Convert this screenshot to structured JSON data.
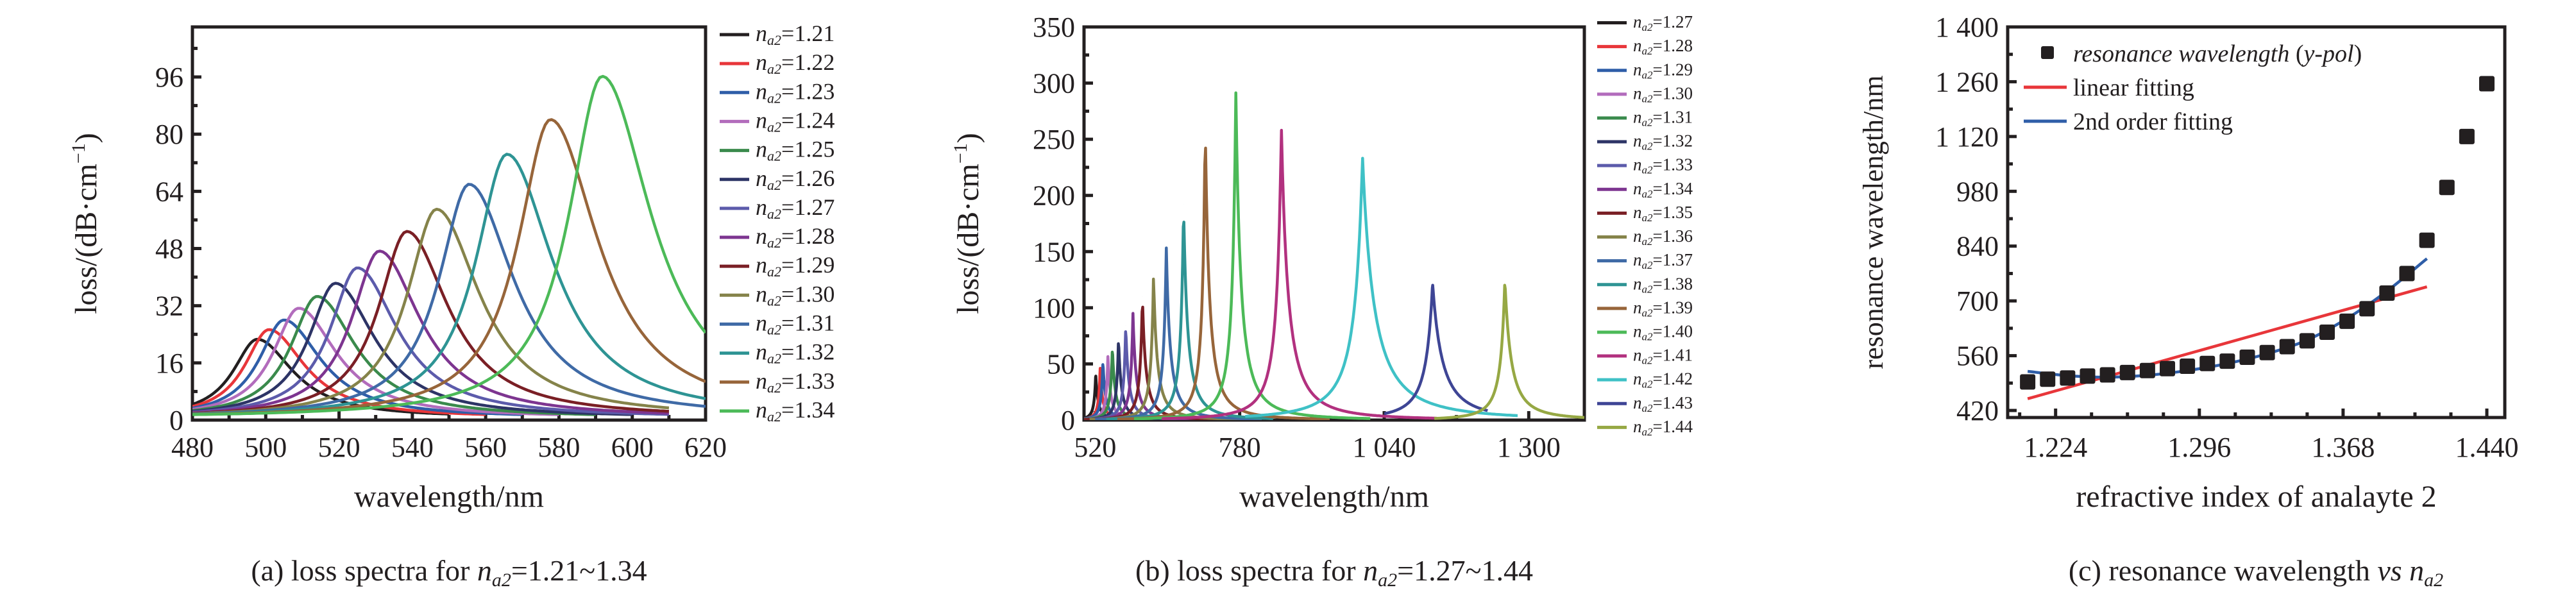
{
  "figure": {
    "background": "#ffffff",
    "axis_color": "#231f20"
  },
  "chart_data": [
    {
      "id": "a",
      "type": "line",
      "caption_prefix": "(a) loss spectra for ",
      "caption_var": "n",
      "caption_sub": "a2",
      "caption_suffix": "=1.21~1.34",
      "xlabel": "wavelength/nm",
      "ylabel": "loss/(dB·cm",
      "ylabel_sup": "−1",
      "ylabel_close": ")",
      "xlim": [
        480,
        620
      ],
      "ylim": [
        0,
        110
      ],
      "xticks": [
        480,
        500,
        520,
        540,
        560,
        580,
        600,
        620
      ],
      "xtick_labels": [
        "480",
        "500",
        "520",
        "540",
        "560",
        "580",
        "600",
        "620"
      ],
      "xminor": [
        490,
        510,
        530,
        550,
        570,
        590,
        610
      ],
      "yticks": [
        0,
        16,
        32,
        48,
        64,
        80,
        96
      ],
      "ytick_labels": [
        "0",
        "16",
        "32",
        "48",
        "64",
        "80",
        "96"
      ],
      "yminor": [
        8,
        24,
        40,
        56,
        72,
        88,
        104
      ],
      "grid": false,
      "legend_position": "right-outside",
      "legend_var": "n",
      "legend_sub": "a2",
      "series": [
        {
          "name": "1.21",
          "color": "#231f20",
          "peak_x": 497.7,
          "peak_y": 22.0,
          "x_end": 550,
          "width": 9.5
        },
        {
          "name": "1.22",
          "color": "#e8363a",
          "peak_x": 500.9,
          "peak_y": 24.7,
          "x_end": 560,
          "width": 9.5
        },
        {
          "name": "1.23",
          "color": "#2f5ea8",
          "peak_x": 505.0,
          "peak_y": 27.4,
          "x_end": 570,
          "width": 9.8
        },
        {
          "name": "1.24",
          "color": "#b26cbc",
          "peak_x": 509.0,
          "peak_y": 30.7,
          "x_end": 580,
          "width": 10.0
        },
        {
          "name": "1.25",
          "color": "#3a8a4c",
          "peak_x": 514.0,
          "peak_y": 34.0,
          "x_end": 590,
          "width": 10.2
        },
        {
          "name": "1.26",
          "color": "#2d3466",
          "peak_x": 519.0,
          "peak_y": 37.7,
          "x_end": 600,
          "width": 10.4
        },
        {
          "name": "1.27",
          "color": "#5c5bab",
          "peak_x": 525.0,
          "peak_y": 42.0,
          "x_end": 610,
          "width": 10.6
        },
        {
          "name": "1.28",
          "color": "#7d3590",
          "peak_x": 531.0,
          "peak_y": 46.7,
          "x_end": 610,
          "width": 10.8
        },
        {
          "name": "1.29",
          "color": "#7a1f25",
          "peak_x": 538.5,
          "peak_y": 52.2,
          "x_end": 610,
          "width": 11.0
        },
        {
          "name": "1.30",
          "color": "#85834a",
          "peak_x": 546.6,
          "peak_y": 58.4,
          "x_end": 610,
          "width": 11.4
        },
        {
          "name": "1.31",
          "color": "#3f6aa6",
          "peak_x": 555.5,
          "peak_y": 65.4,
          "x_end": 620,
          "width": 11.8
        },
        {
          "name": "1.32",
          "color": "#2e9494",
          "peak_x": 565.8,
          "peak_y": 73.8,
          "x_end": 620,
          "width": 12.2
        },
        {
          "name": "1.33",
          "color": "#97653a",
          "peak_x": 577.7,
          "peak_y": 83.5,
          "x_end": 620,
          "width": 12.6
        },
        {
          "name": "1.34",
          "color": "#4cba58",
          "peak_x": 591.8,
          "peak_y": 95.6,
          "x_end": 620,
          "width": 13.0
        }
      ]
    },
    {
      "id": "b",
      "type": "line",
      "caption_prefix": "(b) loss spectra for ",
      "caption_var": "n",
      "caption_sub": "a2",
      "caption_suffix": "=1.27~1.44",
      "xlabel": "wavelength/nm",
      "ylabel": "loss/(dB·cm",
      "ylabel_sup": "−1",
      "ylabel_close": ")",
      "xlim": [
        500,
        1400
      ],
      "ylim": [
        0,
        350
      ],
      "xticks": [
        520,
        780,
        1040,
        1300
      ],
      "xtick_labels": [
        "520",
        "780",
        "1 040",
        "1 300"
      ],
      "xminor": [
        650,
        910,
        1170
      ],
      "yticks": [
        0,
        50,
        100,
        150,
        200,
        250,
        300,
        350
      ],
      "ytick_labels": [
        "0",
        "50",
        "100",
        "150",
        "200",
        "250",
        "300",
        "350"
      ],
      "yminor": [
        25,
        75,
        125,
        175,
        225,
        275,
        325
      ],
      "grid": false,
      "legend_position": "right-outside",
      "legend_var": "n",
      "legend_sub": "a2",
      "series": [
        {
          "name": "1.27",
          "color": "#231f20",
          "peak_x": 521,
          "peak_y": 41.5,
          "x_start": 500,
          "x_end": 620,
          "width": 5
        },
        {
          "name": "1.28",
          "color": "#e8363a",
          "peak_x": 529,
          "peak_y": 47,
          "x_start": 500,
          "x_end": 640,
          "width": 5
        },
        {
          "name": "1.29",
          "color": "#2f5ea8",
          "peak_x": 534,
          "peak_y": 52,
          "x_start": 500,
          "x_end": 660,
          "width": 5.5
        },
        {
          "name": "1.30",
          "color": "#b26cbc",
          "peak_x": 543,
          "peak_y": 58,
          "x_start": 500,
          "x_end": 680,
          "width": 5.5
        },
        {
          "name": "1.31",
          "color": "#3a8a4c",
          "peak_x": 551,
          "peak_y": 65,
          "x_start": 500,
          "x_end": 700,
          "width": 6
        },
        {
          "name": "1.32",
          "color": "#2d3466",
          "peak_x": 562,
          "peak_y": 73,
          "x_start": 500,
          "x_end": 720,
          "width": 6
        },
        {
          "name": "1.33",
          "color": "#5c5bab",
          "peak_x": 575,
          "peak_y": 84,
          "x_start": 500,
          "x_end": 740,
          "width": 6.5
        },
        {
          "name": "1.34",
          "color": "#7d3590",
          "peak_x": 588,
          "peak_y": 95,
          "x_start": 500,
          "x_end": 760,
          "width": 7
        },
        {
          "name": "1.35",
          "color": "#7a1f25",
          "peak_x": 605,
          "peak_y": 110,
          "x_start": 500,
          "x_end": 780,
          "width": 7.5
        },
        {
          "name": "1.36",
          "color": "#85834a",
          "peak_x": 625,
          "peak_y": 129,
          "x_start": 510,
          "x_end": 800,
          "width": 8
        },
        {
          "name": "1.37",
          "color": "#3f6aa6",
          "peak_x": 648,
          "peak_y": 155,
          "x_start": 520,
          "x_end": 820,
          "width": 8.5
        },
        {
          "name": "1.38",
          "color": "#2e9494",
          "peak_x": 679,
          "peak_y": 192,
          "x_start": 540,
          "x_end": 840,
          "width": 9
        },
        {
          "name": "1.39",
          "color": "#97653a",
          "peak_x": 718,
          "peak_y": 266,
          "x_start": 560,
          "x_end": 942,
          "width": 9
        },
        {
          "name": "1.40",
          "color": "#4cba58",
          "peak_x": 773,
          "peak_y": 294,
          "x_start": 590,
          "x_end": 1015,
          "width": 11
        },
        {
          "name": "1.41",
          "color": "#b2317f",
          "peak_x": 855,
          "peak_y": 261,
          "x_start": 640,
          "x_end": 1135,
          "width": 15
        },
        {
          "name": "1.42",
          "color": "#3fc1c6",
          "peak_x": 1001,
          "peak_y": 234,
          "x_start": 790,
          "x_end": 1280,
          "width": 26
        },
        {
          "name": "1.43",
          "color": "#3e4595",
          "peak_x": 1127,
          "peak_y": 122,
          "x_start": 1040,
          "x_end": 1226,
          "width": 22
        },
        {
          "name": "1.44",
          "color": "#96a844",
          "peak_x": 1257,
          "peak_y": 125,
          "x_start": 1130,
          "x_end": 1400,
          "width": 14
        }
      ]
    },
    {
      "id": "c",
      "type": "scatter",
      "caption_prefix": "(c) resonance wavelength ",
      "caption_italic": "vs",
      "caption_var": "n",
      "caption_sub": "a2",
      "xlabel": "refractive index of analayte 2",
      "ylabel": "resonance wavelength/nm",
      "xlim": [
        1.2,
        1.449
      ],
      "ylim": [
        402,
        1400
      ],
      "xticks": [
        1.224,
        1.296,
        1.368,
        1.44
      ],
      "xtick_labels": [
        "1.224",
        "1.296",
        "1.368",
        "1.440"
      ],
      "xminor": [
        1.206,
        1.242,
        1.26,
        1.278,
        1.314,
        1.332,
        1.35,
        1.386,
        1.404,
        1.422
      ],
      "yticks": [
        420,
        560,
        700,
        840,
        980,
        1120,
        1260,
        1400
      ],
      "ytick_labels": [
        "420",
        "560",
        "700",
        "840",
        "980",
        "1 120",
        "1 260",
        "1 400"
      ],
      "yminor": [
        490,
        630,
        770,
        910,
        1050,
        1190,
        1330
      ],
      "grid": false,
      "legend_position": "top-left",
      "legend": [
        {
          "label_italic": "resonance wavelength",
          "label_plain": " (",
          "label_italic2": "y-pol",
          "label_close": ")",
          "marker": "square",
          "color": "#231f20"
        },
        {
          "label": "linear fitting",
          "marker": "line",
          "color": "#e8363a"
        },
        {
          "label": "2nd order fitting",
          "marker": "line",
          "color": "#2f5ea8"
        }
      ],
      "points": {
        "name": "resonance wavelength (y-pol)",
        "x": [
          1.21,
          1.22,
          1.23,
          1.24,
          1.25,
          1.26,
          1.27,
          1.28,
          1.29,
          1.3,
          1.31,
          1.32,
          1.33,
          1.34,
          1.35,
          1.36,
          1.37,
          1.38,
          1.39,
          1.4,
          1.41,
          1.42,
          1.43,
          1.44
        ],
        "y": [
          493,
          500,
          503,
          508,
          511,
          517,
          522,
          527,
          533,
          540,
          546,
          556,
          568,
          583,
          598,
          620,
          648,
          680,
          720,
          770,
          855,
          990,
          1120,
          1255
        ]
      },
      "linear_fit": {
        "x": [
          1.21,
          1.41
        ],
        "y": [
          450,
          736
        ]
      },
      "quadratic_fit": {
        "x": [
          1.21,
          1.23,
          1.25,
          1.27,
          1.29,
          1.31,
          1.33,
          1.35,
          1.37,
          1.39,
          1.41
        ],
        "y": [
          520,
          509,
          505,
          510,
          522,
          540,
          565,
          600,
          655,
          725,
          808
        ]
      }
    }
  ]
}
